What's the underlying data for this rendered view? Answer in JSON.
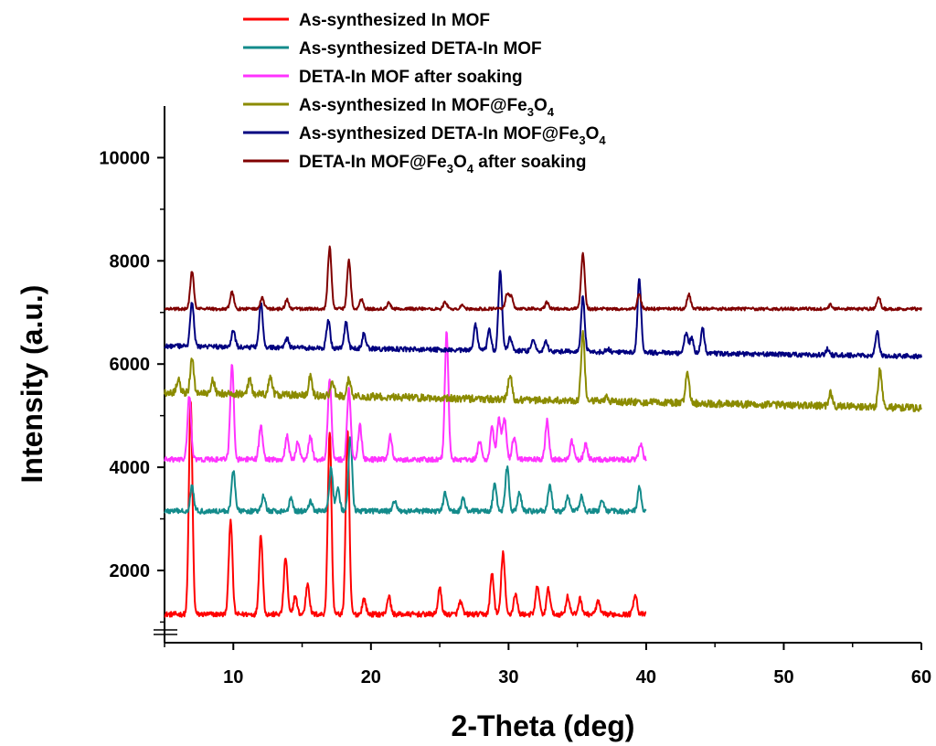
{
  "chart_data": {
    "type": "line",
    "title": "",
    "xlabel": "2-Theta (deg)",
    "ylabel": "Intensity (a.u.)",
    "xlim": [
      5,
      60
    ],
    "ylim": [
      600,
      11000
    ],
    "x_ticks": [
      10,
      20,
      30,
      40,
      50,
      60
    ],
    "y_ticks": [
      2000,
      4000,
      6000,
      8000,
      10000
    ],
    "grid": false,
    "legend_position": "top",
    "series": [
      {
        "name": "As-synthesized In MOF",
        "color": "#ff0000",
        "x_range": [
          5,
          40
        ],
        "baseline": 1150,
        "noise": 50,
        "peaks": [
          [
            6.9,
            5300
          ],
          [
            9.8,
            3000
          ],
          [
            12.0,
            2700
          ],
          [
            13.8,
            2250
          ],
          [
            14.5,
            1500
          ],
          [
            15.4,
            1750
          ],
          [
            17.0,
            4700
          ],
          [
            18.3,
            4700
          ],
          [
            19.5,
            1450
          ],
          [
            21.3,
            1500
          ],
          [
            25.0,
            1650
          ],
          [
            26.5,
            1400
          ],
          [
            28.8,
            1950
          ],
          [
            29.6,
            2350
          ],
          [
            30.5,
            1550
          ],
          [
            32.1,
            1700
          ],
          [
            32.9,
            1650
          ],
          [
            34.3,
            1500
          ],
          [
            35.2,
            1450
          ],
          [
            36.5,
            1400
          ],
          [
            39.2,
            1550
          ]
        ]
      },
      {
        "name": "As-synthesized DETA-In MOF",
        "color": "#138b8b",
        "x_range": [
          5,
          40
        ],
        "baseline": 3150,
        "noise": 50,
        "peaks": [
          [
            7.0,
            3650
          ],
          [
            10.0,
            3950
          ],
          [
            12.2,
            3450
          ],
          [
            14.2,
            3400
          ],
          [
            15.6,
            3350
          ],
          [
            17.1,
            4000
          ],
          [
            17.6,
            3600
          ],
          [
            18.5,
            4600
          ],
          [
            21.7,
            3350
          ],
          [
            25.4,
            3500
          ],
          [
            26.7,
            3400
          ],
          [
            29.0,
            3700
          ],
          [
            29.9,
            4000
          ],
          [
            30.8,
            3500
          ],
          [
            33.0,
            3650
          ],
          [
            34.3,
            3450
          ],
          [
            35.3,
            3450
          ],
          [
            36.8,
            3350
          ],
          [
            39.5,
            3600
          ]
        ]
      },
      {
        "name": "DETA-In MOF after soaking",
        "color": "#ff33ff",
        "x_range": [
          5,
          40
        ],
        "baseline": 4150,
        "noise": 50,
        "peaks": [
          [
            6.8,
            5400
          ],
          [
            9.9,
            6000
          ],
          [
            12.0,
            4800
          ],
          [
            13.9,
            4600
          ],
          [
            14.7,
            4500
          ],
          [
            15.6,
            4600
          ],
          [
            17.0,
            5700
          ],
          [
            18.4,
            5500
          ],
          [
            19.2,
            4800
          ],
          [
            21.4,
            4600
          ],
          [
            25.5,
            6600
          ],
          [
            27.9,
            4500
          ],
          [
            28.8,
            4800
          ],
          [
            29.3,
            4950
          ],
          [
            29.7,
            4950
          ],
          [
            30.4,
            4600
          ],
          [
            32.8,
            4900
          ],
          [
            34.6,
            4500
          ],
          [
            35.6,
            4450
          ],
          [
            39.6,
            4450
          ]
        ]
      },
      {
        "name": "As-synthesized In MOF@Fe3O4",
        "name_main": "As-synthesized In MOF@Fe",
        "name_sub1": "3",
        "name_mid": "O",
        "name_sub2": "4",
        "name_tail": "",
        "color": "#8b8b00",
        "x_range": [
          5,
          60
        ],
        "baseline_start": 5450,
        "baseline_end": 5150,
        "noise": 70,
        "peaks": [
          [
            6.0,
            5700
          ],
          [
            7.0,
            6100
          ],
          [
            8.5,
            5700
          ],
          [
            11.2,
            5700
          ],
          [
            12.7,
            5750
          ],
          [
            15.6,
            5750
          ],
          [
            17.2,
            5650
          ],
          [
            18.4,
            5700
          ],
          [
            30.1,
            5800
          ],
          [
            35.4,
            6600
          ],
          [
            37.1,
            5350
          ],
          [
            43.0,
            5850
          ],
          [
            53.4,
            5450
          ],
          [
            57.0,
            5900
          ]
        ]
      },
      {
        "name": "As-synthesized DETA-In MOF@Fe3O4",
        "name_main": "As-synthesized DETA-In MOF@Fe",
        "name_sub1": "3",
        "name_mid": "O",
        "name_sub2": "4",
        "name_tail": "",
        "color": "#000080",
        "x_range": [
          5,
          60
        ],
        "baseline_start": 6350,
        "baseline_end": 6150,
        "noise": 45,
        "peaks": [
          [
            7.0,
            7200
          ],
          [
            10.0,
            6650
          ],
          [
            12.0,
            7200
          ],
          [
            13.9,
            6500
          ],
          [
            16.9,
            6850
          ],
          [
            18.2,
            6800
          ],
          [
            19.5,
            6600
          ],
          [
            27.6,
            6750
          ],
          [
            28.6,
            6650
          ],
          [
            29.4,
            7800
          ],
          [
            30.1,
            6500
          ],
          [
            31.8,
            6450
          ],
          [
            32.7,
            6450
          ],
          [
            35.4,
            7300
          ],
          [
            37.2,
            6300
          ],
          [
            39.5,
            7650
          ],
          [
            42.9,
            6600
          ],
          [
            43.3,
            6500
          ],
          [
            44.1,
            6700
          ],
          [
            53.2,
            6300
          ],
          [
            56.8,
            6600
          ]
        ]
      },
      {
        "name": "DETA-In MOF@Fe3O4 after soaking",
        "name_main": "DETA-In MOF@Fe",
        "name_sub1": "3",
        "name_mid": "O",
        "name_sub2": "4",
        "name_tail": " after soaking",
        "color": "#800000",
        "x_range": [
          5,
          60
        ],
        "baseline": 7070,
        "noise": 30,
        "peaks": [
          [
            7.0,
            7800
          ],
          [
            9.9,
            7400
          ],
          [
            12.1,
            7300
          ],
          [
            13.9,
            7250
          ],
          [
            17.0,
            8250
          ],
          [
            18.4,
            8000
          ],
          [
            19.3,
            7250
          ],
          [
            21.3,
            7200
          ],
          [
            25.4,
            7200
          ],
          [
            26.6,
            7150
          ],
          [
            29.9,
            7350
          ],
          [
            30.2,
            7300
          ],
          [
            32.8,
            7200
          ],
          [
            35.4,
            8150
          ],
          [
            39.5,
            7350
          ],
          [
            43.1,
            7350
          ],
          [
            53.4,
            7150
          ],
          [
            56.9,
            7300
          ]
        ]
      }
    ]
  }
}
